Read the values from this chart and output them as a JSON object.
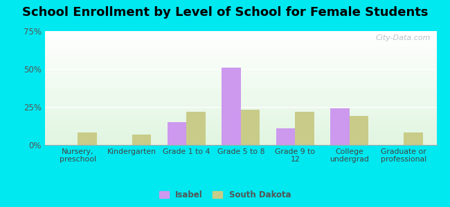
{
  "title": "School Enrollment by Level of School for Female Students",
  "categories": [
    "Nursery,\npreschool",
    "Kindergarten",
    "Grade 1 to 4",
    "Grade 5 to 8",
    "Grade 9 to\n12",
    "College\nundergrad",
    "Graduate or\nprofessional"
  ],
  "isabel_values": [
    0,
    0,
    15,
    51,
    11,
    24,
    0
  ],
  "sd_values": [
    8,
    7,
    22,
    23,
    22,
    19,
    8
  ],
  "isabel_color": "#cc99ee",
  "sd_color": "#c8cc88",
  "outer_bg": "#00e8f0",
  "ylim": [
    0,
    75
  ],
  "yticks": [
    0,
    25,
    50,
    75
  ],
  "ytick_labels": [
    "0%",
    "25%",
    "50%",
    "75%"
  ],
  "legend_isabel": "Isabel",
  "legend_sd": "South Dakota",
  "watermark": "City-Data.com",
  "title_fontsize": 13,
  "bar_width": 0.35
}
